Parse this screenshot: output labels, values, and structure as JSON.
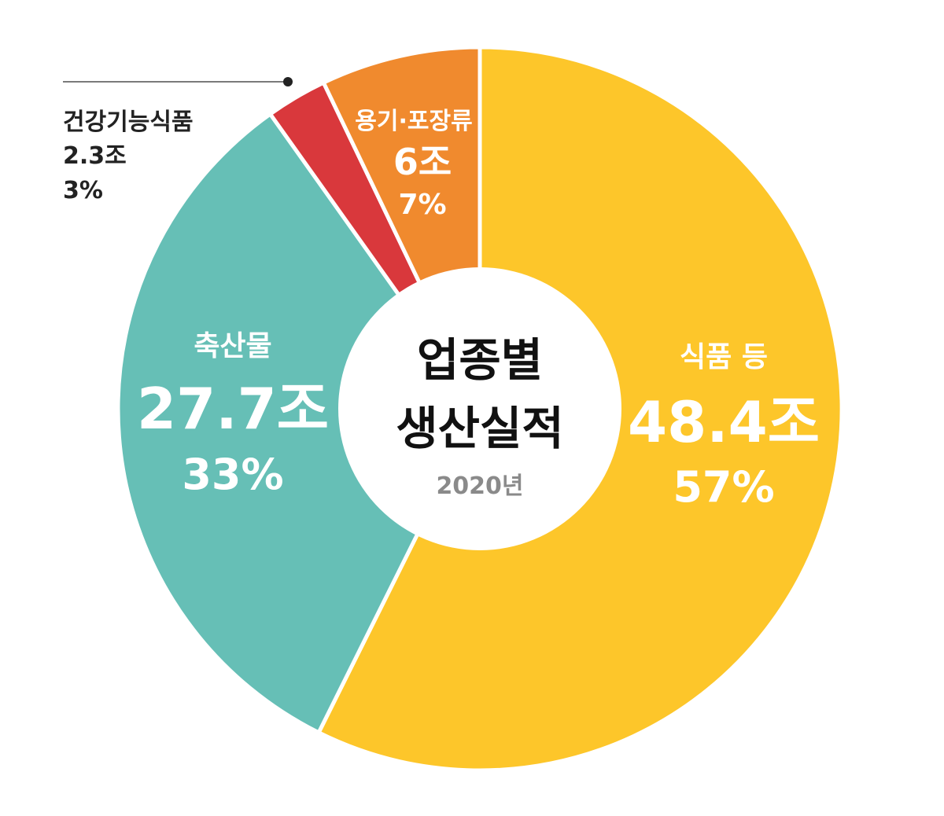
{
  "chart_data": {
    "type": "pie",
    "donut": true,
    "center_title_line1": "업종별",
    "center_title_line2": "생산실적",
    "center_subtitle": "2020년",
    "slices": [
      {
        "name": "식품 등",
        "amount_label": "48.4조",
        "percent_label": "57%",
        "value": 48.4,
        "color": "#FDC62A"
      },
      {
        "name": "축산물",
        "amount_label": "27.7조",
        "percent_label": "33%",
        "value": 27.7,
        "color": "#66BFB6"
      },
      {
        "name": "건강기능식품",
        "amount_label": "2.3조",
        "percent_label": "3%",
        "value": 2.3,
        "color": "#D9383C"
      },
      {
        "name": "용기·포장류",
        "amount_label": "6조",
        "percent_label": "7%",
        "value": 6.0,
        "color": "#F08A2E"
      }
    ]
  }
}
